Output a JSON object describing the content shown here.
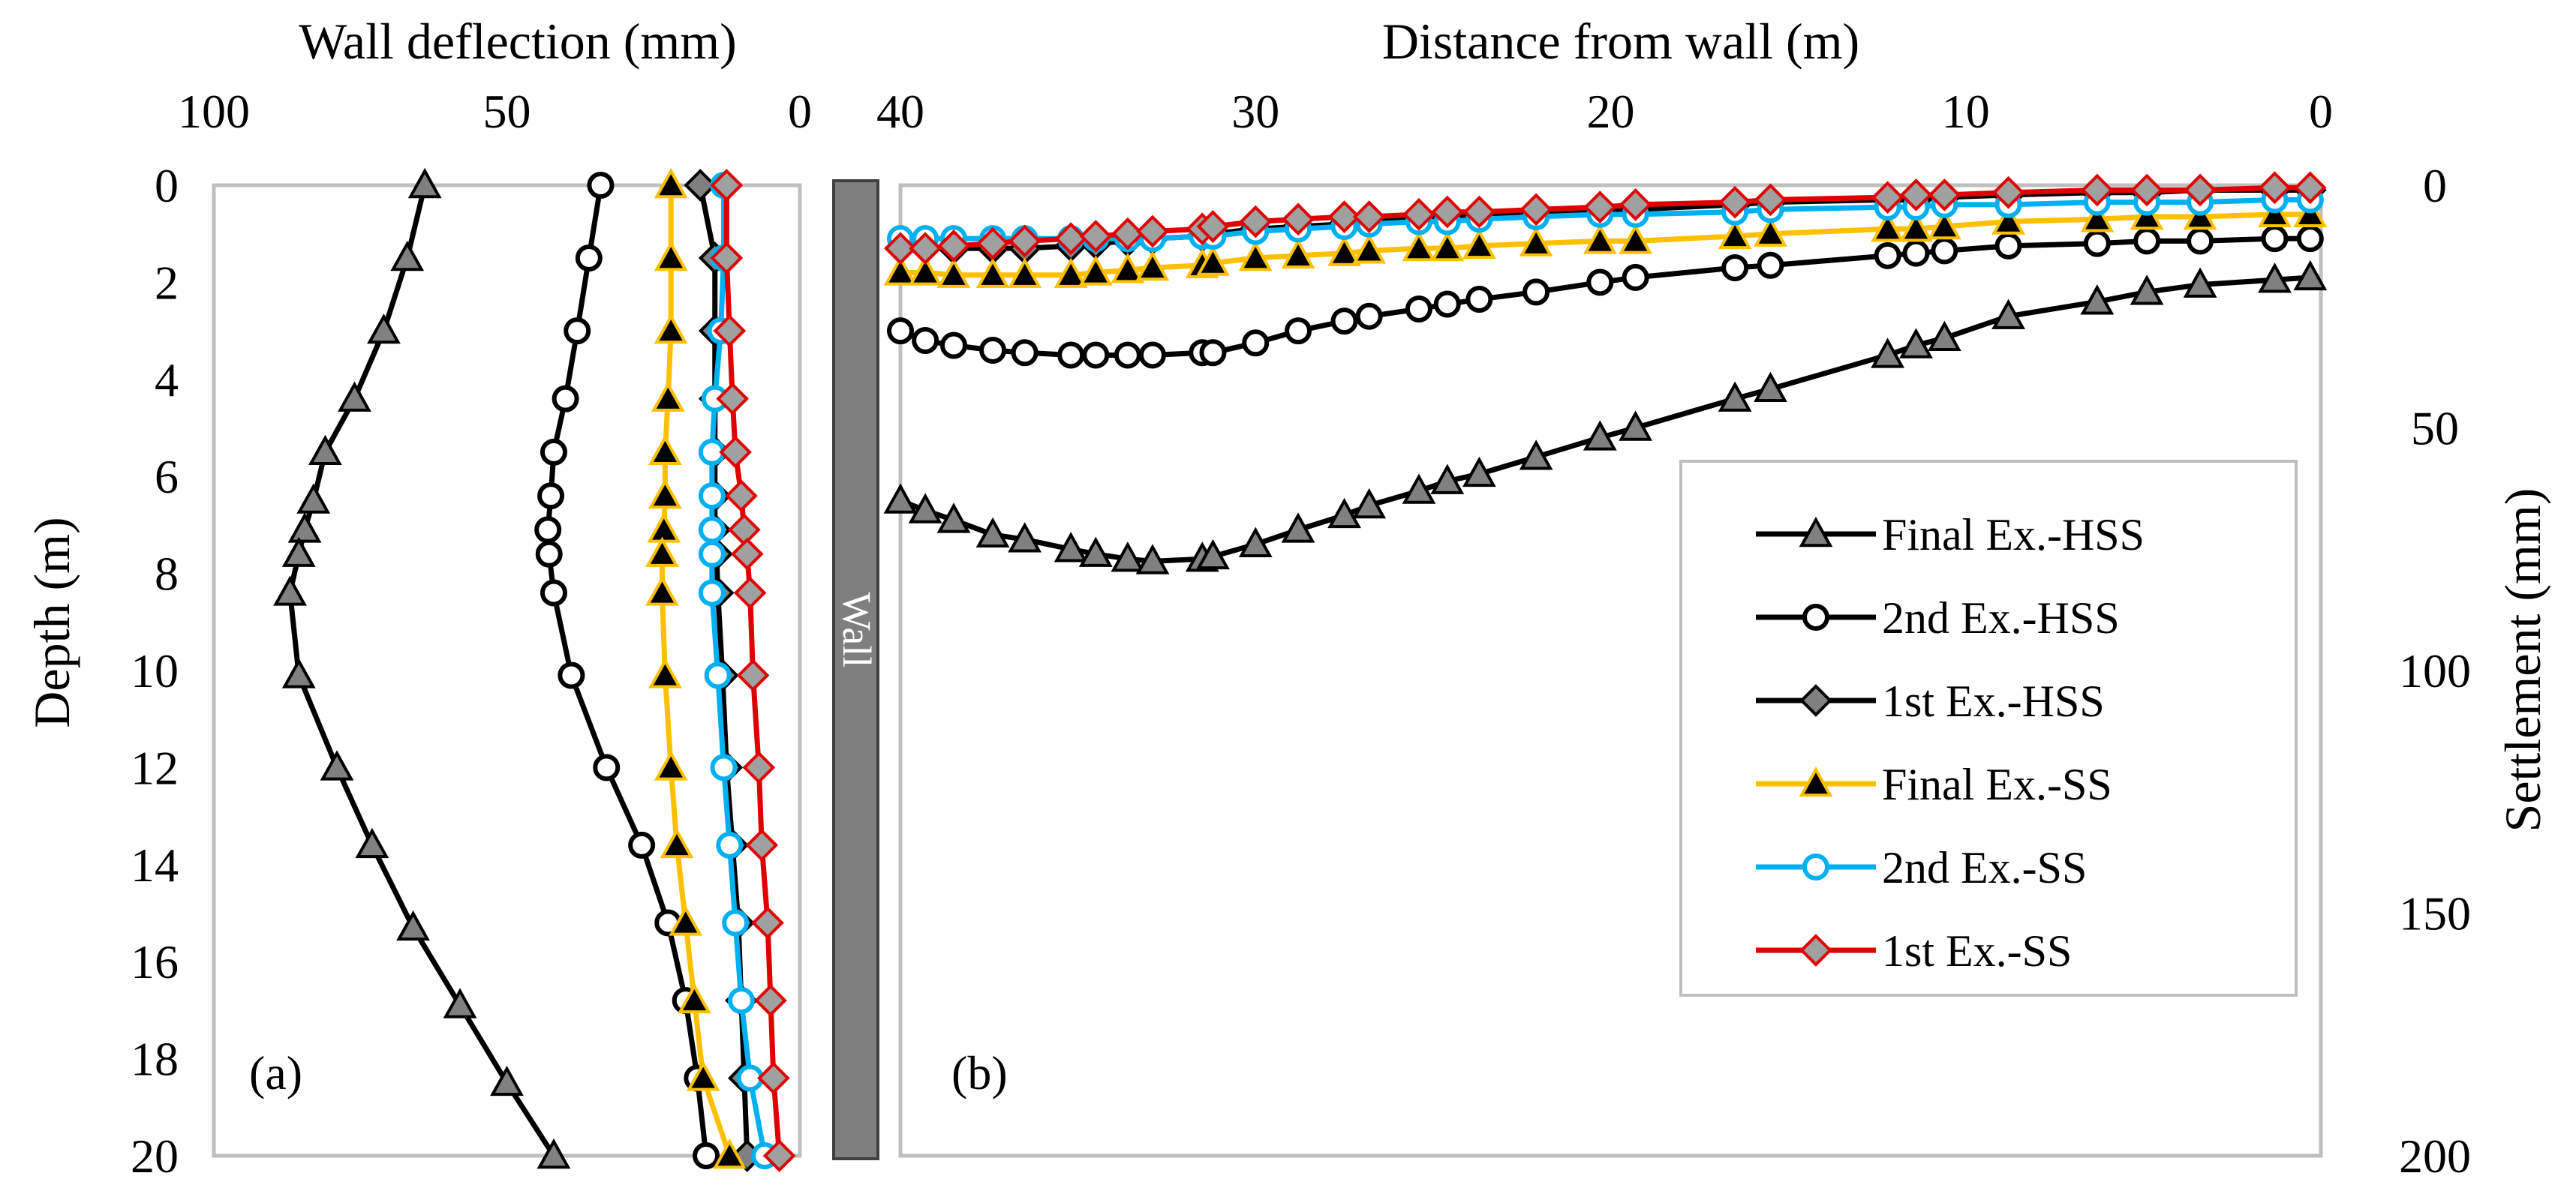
{
  "colors": {
    "hss": "#000000",
    "hss_marker_fill": "#808080",
    "final_ss": "#FFC000",
    "second_ss": "#00B0F0",
    "first_ss": "#E00000",
    "first_ss_marker": "#A0A0A0",
    "wall": "#7F7F7F",
    "frame": "#BFBFBF"
  },
  "chart_data": [
    {
      "id": "a",
      "type": "line",
      "panel_label": "(a)",
      "title": "Wall deflection (mm)",
      "xlabel": "Wall deflection (mm)",
      "ylabel": "Depth (m)",
      "xlim": [
        100,
        0
      ],
      "ylim": [
        0,
        20
      ],
      "x_ticks": [
        "100",
        "50",
        "0"
      ],
      "y_ticks": [
        "0",
        "2",
        "4",
        "6",
        "8",
        "10",
        "12",
        "14",
        "16",
        "18",
        "20"
      ],
      "series": [
        {
          "name": "Final Ex.-HSS",
          "marker": "triangle",
          "depth": [
            0,
            1.5,
            3,
            4.4,
            5.5,
            6.5,
            7.1,
            7.6,
            8.4,
            10.1,
            12,
            13.6,
            15.3,
            16.9,
            18.5,
            20
          ],
          "deflection": [
            64,
            67,
            71,
            76,
            81,
            83,
            84.5,
            85.5,
            87,
            85.5,
            79,
            73,
            66,
            58,
            50,
            42
          ]
        },
        {
          "name": "2nd Ex.-HSS",
          "marker": "circle",
          "depth": [
            0,
            1.5,
            3,
            4.4,
            5.5,
            6.4,
            7.1,
            7.6,
            8.4,
            10.1,
            12,
            13.6,
            15.2,
            16.8,
            18.4,
            20
          ],
          "deflection": [
            34,
            36,
            38,
            40,
            42,
            42.5,
            43,
            42.8,
            42,
            39,
            33,
            27,
            22.5,
            19.5,
            17.5,
            16
          ]
        },
        {
          "name": "1st Ex.-HSS",
          "marker": "diamond",
          "depth": [
            0,
            1.5,
            3,
            4.4,
            5.5,
            6.4,
            7.1,
            7.6,
            8.4,
            10.1,
            12,
            13.6,
            15.2,
            16.8,
            18.4,
            20
          ],
          "deflection": [
            17,
            14.5,
            14.5,
            14.5,
            14.5,
            14.5,
            14.5,
            14.2,
            14,
            13.2,
            12.5,
            11.5,
            10.5,
            10,
            9.5,
            9
          ]
        },
        {
          "name": "Final Ex.-SS",
          "marker": "triangle",
          "depth": [
            0,
            1.5,
            3,
            4.4,
            5.5,
            6.4,
            7.1,
            7.6,
            8.4,
            10.1,
            12,
            13.6,
            15.2,
            16.8,
            18.4,
            20
          ],
          "deflection": [
            22,
            22,
            22,
            22.5,
            23,
            23,
            23.2,
            23.5,
            23.5,
            23,
            22,
            21,
            19.5,
            18,
            16.5,
            12
          ]
        },
        {
          "name": "2nd Ex.-SS",
          "marker": "circle",
          "depth": [
            0,
            1.5,
            3,
            4.4,
            5.5,
            6.4,
            7.1,
            7.6,
            8.4,
            10.1,
            12,
            13.6,
            15.2,
            16.8,
            18.4,
            20
          ],
          "deflection": [
            13,
            13,
            13.5,
            14.5,
            15,
            15,
            15,
            15,
            15,
            14,
            13,
            12,
            11,
            10,
            8.5,
            6
          ]
        },
        {
          "name": "1st Ex.-SS",
          "marker": "diamond",
          "depth": [
            0,
            1.5,
            3,
            4.4,
            5.5,
            6.4,
            7.1,
            7.6,
            8.4,
            10.1,
            12,
            13.6,
            15.2,
            16.8,
            18.4,
            20
          ],
          "deflection": [
            12.5,
            12.5,
            12,
            11.5,
            11,
            10,
            9.5,
            9,
            8.5,
            8,
            7,
            6.5,
            5.5,
            5,
            4.5,
            3.5
          ]
        }
      ]
    },
    {
      "id": "b",
      "type": "line",
      "panel_label": "(b)",
      "title": "Distance from wall (m)",
      "xlabel": "Distance from wall (m)",
      "ylabel": "Settlement (mm)",
      "xlim": [
        40,
        0
      ],
      "ylim": [
        0,
        200
      ],
      "x_ticks": [
        "40",
        "30",
        "20",
        "10",
        "0"
      ],
      "y_ticks": [
        "0",
        "50",
        "100",
        "150",
        "200"
      ],
      "legend_position": "right",
      "series": [
        {
          "name": "Final Ex.-HSS",
          "marker": "triangle",
          "x": [
            40,
            39.3,
            38.5,
            37.4,
            36.5,
            35.2,
            34.5,
            33.6,
            32.9,
            31.5,
            31.2,
            30,
            28.8,
            27.5,
            26.8,
            25.4,
            24.6,
            23.7,
            22.1,
            20.3,
            19.3,
            16.5,
            15.5,
            12.2,
            11.4,
            10.6,
            8.8,
            6.3,
            4.9,
            3.4,
            1.3,
            0.3
          ],
          "settlement": [
            65,
            67,
            69,
            72,
            73,
            75,
            76,
            77,
            77.5,
            77,
            76.5,
            74,
            71,
            68,
            66,
            63,
            61,
            59.5,
            56,
            52,
            50,
            44,
            42,
            35,
            33,
            31.5,
            27,
            24,
            22,
            20.5,
            19.5,
            19
          ]
        },
        {
          "name": "2nd Ex.-HSS",
          "marker": "circle",
          "x": [
            40,
            39.3,
            38.5,
            37.4,
            36.5,
            35.2,
            34.5,
            33.6,
            32.9,
            31.5,
            31.2,
            30,
            28.8,
            27.5,
            26.8,
            25.4,
            24.6,
            23.7,
            22.1,
            20.3,
            19.3,
            16.5,
            15.5,
            12.2,
            11.4,
            10.6,
            8.8,
            6.3,
            4.9,
            3.4,
            1.3,
            0.3
          ],
          "settlement": [
            30,
            32,
            33,
            34,
            34.5,
            35,
            35,
            35,
            35,
            34.5,
            34.5,
            32.5,
            30,
            28,
            27,
            25.5,
            24.5,
            23.5,
            22,
            20,
            19,
            17,
            16.5,
            14.5,
            14,
            13.5,
            12.5,
            12,
            11.5,
            11.5,
            11,
            11
          ]
        },
        {
          "name": "1st Ex.-HSS",
          "marker": "diamond",
          "x": [
            40,
            39.3,
            38.5,
            37.4,
            36.5,
            35.2,
            34.5,
            33.6,
            32.9,
            31.5,
            31.2,
            30,
            28.8,
            27.5,
            26.8,
            25.4,
            24.6,
            23.7,
            22.1,
            20.3,
            19.3,
            16.5,
            15.5,
            12.2,
            11.4,
            10.6,
            8.8,
            6.3,
            4.9,
            3.4,
            1.3,
            0.3
          ],
          "settlement": [
            13,
            13,
            13,
            13,
            13,
            12.5,
            12,
            11.5,
            11,
            10.5,
            10,
            9,
            8.5,
            8,
            7.5,
            7,
            6.5,
            6.5,
            6,
            5,
            5,
            4,
            3.5,
            3,
            3,
            2.5,
            2,
            1.5,
            1.5,
            1,
            1,
            1
          ]
        },
        {
          "name": "Final Ex.-SS",
          "marker": "triangle",
          "x": [
            40,
            39.3,
            38.5,
            37.4,
            36.5,
            35.2,
            34.5,
            33.6,
            32.9,
            31.5,
            31.2,
            30,
            28.8,
            27.5,
            26.8,
            25.4,
            24.6,
            23.7,
            22.1,
            20.3,
            19.3,
            16.5,
            15.5,
            12.2,
            11.4,
            10.6,
            8.8,
            6.3,
            4.9,
            3.4,
            1.3,
            0.3
          ],
          "settlement": [
            18,
            18,
            18.5,
            18.5,
            18.5,
            18.5,
            18,
            17.5,
            17,
            16.5,
            16,
            15,
            14.5,
            14,
            13.5,
            13,
            13,
            12.5,
            12,
            11.5,
            11.5,
            10.5,
            10,
            9,
            9,
            8.5,
            7.5,
            7,
            6.5,
            6.5,
            6,
            6
          ]
        },
        {
          "name": "2nd Ex.-SS",
          "marker": "circle",
          "x": [
            40,
            39.3,
            38.5,
            37.4,
            36.5,
            35.2,
            34.5,
            33.6,
            32.9,
            31.5,
            31.2,
            30,
            28.8,
            27.5,
            26.8,
            25.4,
            24.6,
            23.7,
            22.1,
            20.3,
            19.3,
            16.5,
            15.5,
            12.2,
            11.4,
            10.6,
            8.8,
            6.3,
            4.9,
            3.4,
            1.3,
            0.3
          ],
          "settlement": [
            11,
            11,
            11,
            11,
            11,
            11,
            11,
            11,
            11,
            10.5,
            10.5,
            9.5,
            9,
            8.5,
            8,
            7.5,
            7.5,
            7,
            6.5,
            6,
            6,
            5.5,
            5,
            4.5,
            4.5,
            4,
            4,
            3.5,
            3.5,
            3.5,
            3,
            3
          ]
        },
        {
          "name": "1st Ex.-SS",
          "marker": "diamond",
          "x": [
            40,
            39.3,
            38.5,
            37.4,
            36.5,
            35.2,
            34.5,
            33.6,
            32.9,
            31.5,
            31.2,
            30,
            28.8,
            27.5,
            26.8,
            25.4,
            24.6,
            23.7,
            22.1,
            20.3,
            19.3,
            16.5,
            15.5,
            12.2,
            11.4,
            10.6,
            8.8,
            6.3,
            4.9,
            3.4,
            1.3,
            0.3
          ],
          "settlement": [
            13,
            13,
            12.5,
            12,
            11.5,
            11,
            10.5,
            10,
            9.5,
            9,
            8.5,
            7.5,
            7,
            6.5,
            6.5,
            6,
            5.5,
            5.5,
            5,
            4.5,
            4,
            3.5,
            3,
            2.5,
            2,
            2,
            1.5,
            1,
            1,
            1,
            0.5,
            0.5
          ]
        }
      ]
    }
  ],
  "wall_label": "Wall"
}
